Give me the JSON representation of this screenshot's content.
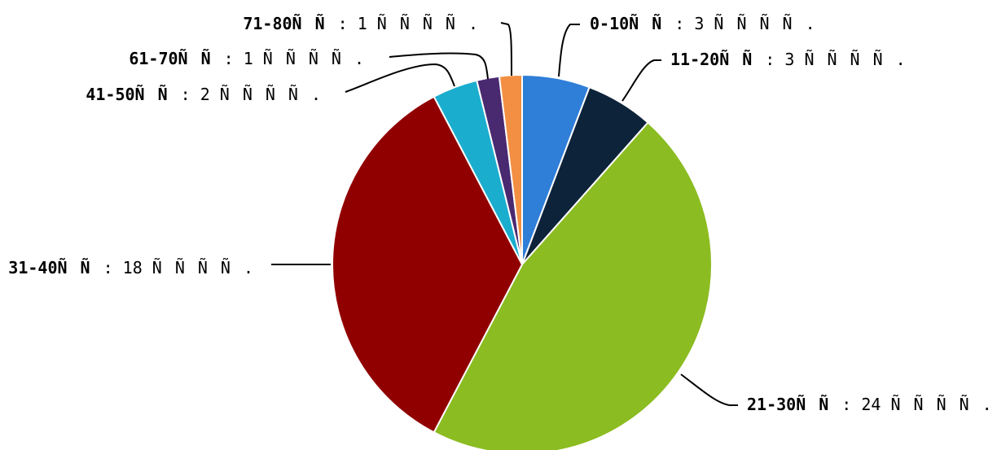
{
  "chart_data": {
    "type": "pie",
    "start": "top",
    "direction": "clockwise",
    "legend": "none",
    "separator": ": ",
    "slices": [
      {
        "category": "0-10ÑÑ",
        "value": 3,
        "value_label": "3 ÑÑÑÑ.",
        "color": "#2f7ed8"
      },
      {
        "category": "11-20ÑÑ",
        "value": 3,
        "value_label": "3 ÑÑÑÑ.",
        "color": "#0d233a"
      },
      {
        "category": "21-30ÑÑ",
        "value": 24,
        "value_label": "24 ÑÑÑÑ.",
        "color": "#8bbc21"
      },
      {
        "category": "31-40ÑÑ",
        "value": 18,
        "value_label": "18 ÑÑÑÑ.",
        "color": "#910000"
      },
      {
        "category": "41-50ÑÑ",
        "value": 2,
        "value_label": "2 ÑÑÑÑ.",
        "color": "#1aadce"
      },
      {
        "category": "61-70ÑÑ",
        "value": 1,
        "value_label": "1 ÑÑÑÑ.",
        "color": "#492970"
      },
      {
        "category": "71-80ÑÑ",
        "value": 1,
        "value_label": "1 ÑÑÑÑ.",
        "color": "#f28f43"
      }
    ]
  }
}
